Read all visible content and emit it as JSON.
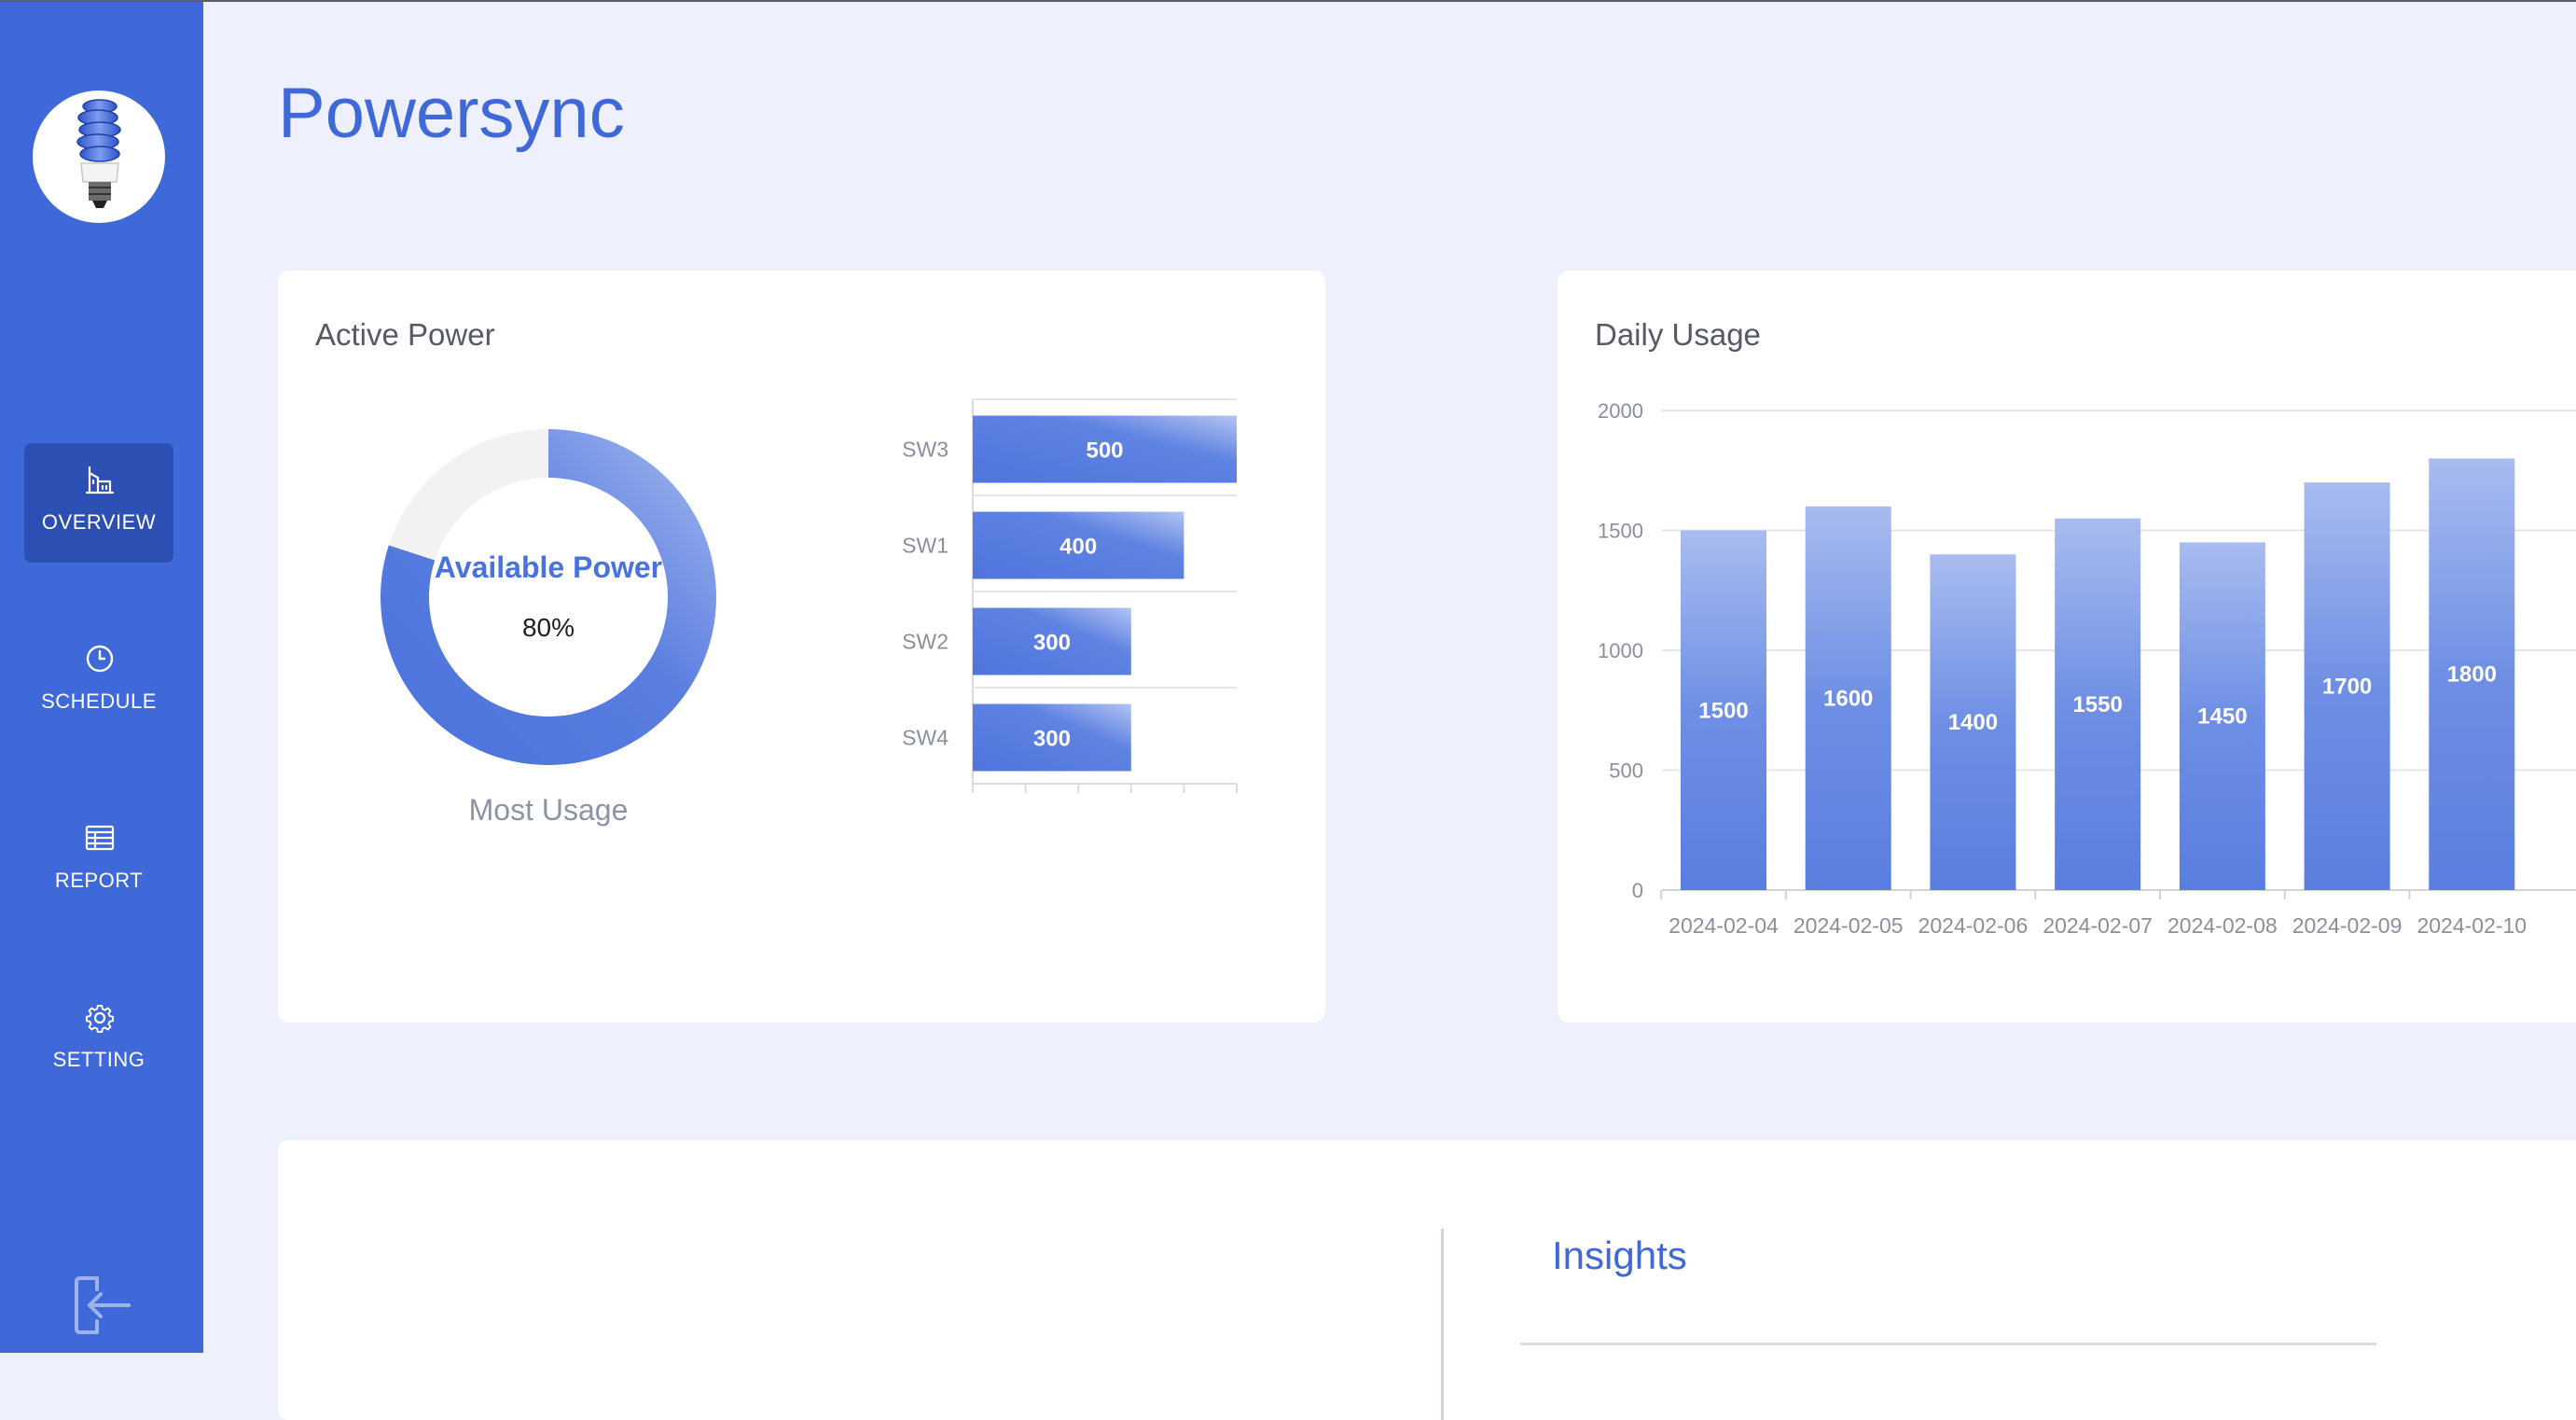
{
  "app": {
    "title": "Powersync"
  },
  "sidebar": {
    "items": [
      {
        "label": "OVERVIEW",
        "icon": "building-chart-icon",
        "active": true
      },
      {
        "label": "SCHEDULE",
        "icon": "clock-icon",
        "active": false
      },
      {
        "label": "REPORT",
        "icon": "table-icon",
        "active": false
      },
      {
        "label": "SETTING",
        "icon": "gear-icon",
        "active": false
      }
    ],
    "logout_icon": "logout-icon"
  },
  "active_power": {
    "title": "Active Power",
    "donut": {
      "label": "Available Power",
      "value_text": "80%",
      "value": 80,
      "caption": "Most Usage"
    }
  },
  "daily_usage": {
    "title": "Daily Usage"
  },
  "insights": {
    "title": "Insights"
  },
  "colors": {
    "primary": "#3f68d8",
    "bar": "#5a7ee0",
    "bar_light": "#a9bcf0",
    "background": "#eef0fd"
  },
  "chart_data": [
    {
      "type": "pie",
      "name": "donut",
      "values": [
        80,
        20
      ],
      "center_label": "Available Power",
      "center_value": "80%"
    },
    {
      "type": "bar",
      "orientation": "horizontal",
      "categories": [
        "SW3",
        "SW1",
        "SW2",
        "SW4"
      ],
      "values": [
        500,
        400,
        300,
        300
      ],
      "xlim": [
        0,
        500
      ],
      "data_labels": true
    },
    {
      "type": "bar",
      "categories": [
        "2024-02-04",
        "2024-02-05",
        "2024-02-06",
        "2024-02-07",
        "2024-02-08",
        "2024-02-09",
        "2024-02-10"
      ],
      "values": [
        1500,
        1600,
        1400,
        1550,
        1450,
        1700,
        1800
      ],
      "yticks": [
        "0",
        "500",
        "1000",
        "1500",
        "2000"
      ],
      "ylim": [
        0,
        2000
      ],
      "grid": true,
      "data_labels": true
    }
  ]
}
